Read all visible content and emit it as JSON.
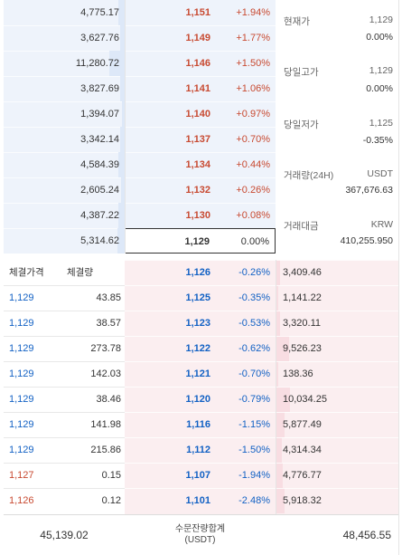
{
  "asks": [
    {
      "volume": "4,775.17",
      "price": "1,151",
      "change": "+1.94%",
      "fill": 0.05
    },
    {
      "volume": "3,627.76",
      "price": "1,149",
      "change": "+1.77%",
      "fill": 0.04
    },
    {
      "volume": "11,280.72",
      "price": "1,146",
      "change": "+1.50%",
      "fill": 0.13
    },
    {
      "volume": "3,827.69",
      "price": "1,141",
      "change": "+1.06%",
      "fill": 0.04
    },
    {
      "volume": "1,394.07",
      "price": "1,140",
      "change": "+0.97%",
      "fill": 0.02
    },
    {
      "volume": "3,342.14",
      "price": "1,137",
      "change": "+0.70%",
      "fill": 0.04
    },
    {
      "volume": "4,584.39",
      "price": "1,134",
      "change": "+0.44%",
      "fill": 0.05
    },
    {
      "volume": "2,605.24",
      "price": "1,132",
      "change": "+0.26%",
      "fill": 0.03
    },
    {
      "volume": "4,387.22",
      "price": "1,130",
      "change": "+0.08%",
      "fill": 0.05
    },
    {
      "volume": "5,314.62",
      "price": "1,129",
      "change": "0.00%",
      "fill": 0.06
    }
  ],
  "info": {
    "current_label": "현재가",
    "current_value": "1,129",
    "current_change": "0.00%",
    "high_label": "당일고가",
    "high_value": "1,129",
    "high_change": "0.00%",
    "low_label": "당일저가",
    "low_value": "1,125",
    "low_change": "-0.35%",
    "volume_label": "거래량(24H)",
    "volume_unit": "USDT",
    "volume_value": "367,676.63",
    "amount_label": "거래대금",
    "amount_unit": "KRW",
    "amount_value": "410,255.950"
  },
  "trades_header": {
    "price": "체결가격",
    "qty": "체결량"
  },
  "trades": [
    {
      "price": "1,129",
      "qty": "43.85",
      "side": "down"
    },
    {
      "price": "1,129",
      "qty": "38.57",
      "side": "down"
    },
    {
      "price": "1,129",
      "qty": "273.78",
      "side": "down"
    },
    {
      "price": "1,129",
      "qty": "142.03",
      "side": "down"
    },
    {
      "price": "1,129",
      "qty": "38.46",
      "side": "down"
    },
    {
      "price": "1,129",
      "qty": "141.98",
      "side": "down"
    },
    {
      "price": "1,129",
      "qty": "215.86",
      "side": "down"
    },
    {
      "price": "1,127",
      "qty": "0.15",
      "side": "up"
    },
    {
      "price": "1,126",
      "qty": "0.12",
      "side": "up"
    }
  ],
  "bids": [
    {
      "price": "1,126",
      "change": "-0.26%",
      "volume": "3,409.46",
      "fill": 0.04
    },
    {
      "price": "1,125",
      "change": "-0.35%",
      "volume": "1,141.22",
      "fill": 0.01
    },
    {
      "price": "1,123",
      "change": "-0.53%",
      "volume": "3,320.11",
      "fill": 0.04
    },
    {
      "price": "1,122",
      "change": "-0.62%",
      "volume": "9,526.23",
      "fill": 0.11
    },
    {
      "price": "1,121",
      "change": "-0.70%",
      "volume": "138.36",
      "fill": 0.005
    },
    {
      "price": "1,120",
      "change": "-0.79%",
      "volume": "10,034.25",
      "fill": 0.12
    },
    {
      "price": "1,116",
      "change": "-1.15%",
      "volume": "5,877.49",
      "fill": 0.07
    },
    {
      "price": "1,112",
      "change": "-1.50%",
      "volume": "4,314.34",
      "fill": 0.05
    },
    {
      "price": "1,107",
      "change": "-1.94%",
      "volume": "4,776.77",
      "fill": 0.06
    },
    {
      "price": "1,101",
      "change": "-2.48%",
      "volume": "5,918.32",
      "fill": 0.07
    }
  ],
  "footer": {
    "ask_total": "45,139.02",
    "label": "수문잔량합계",
    "unit": "(USDT)",
    "bid_total": "48,456.55"
  }
}
